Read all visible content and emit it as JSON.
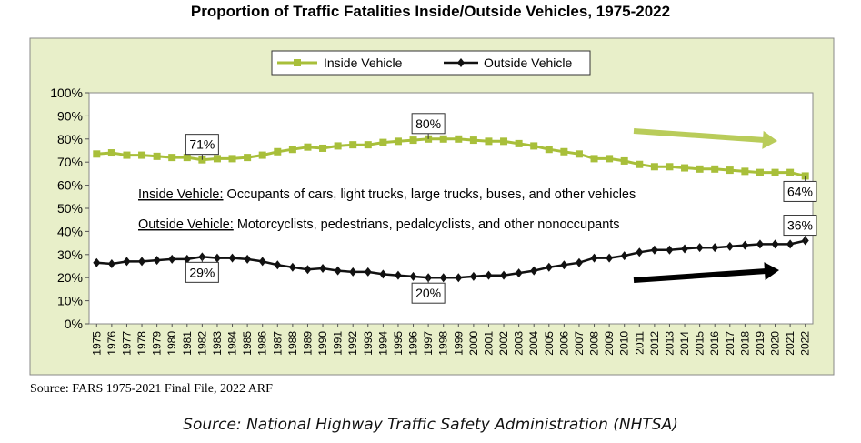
{
  "chart_data": {
    "type": "line",
    "title": "Proportion of Traffic Fatalities Inside/Outside Vehicles, 1975-2022",
    "x": [
      "1975",
      "1976",
      "1977",
      "1978",
      "1979",
      "1980",
      "1981",
      "1982",
      "1983",
      "1984",
      "1985",
      "1986",
      "1987",
      "1988",
      "1989",
      "1990",
      "1991",
      "1992",
      "1993",
      "1994",
      "1995",
      "1996",
      "1997",
      "1998",
      "1999",
      "2000",
      "2001",
      "2002",
      "2003",
      "2004",
      "2005",
      "2006",
      "2007",
      "2008",
      "2009",
      "2010",
      "2011",
      "2012",
      "2013",
      "2014",
      "2015",
      "2016",
      "2017",
      "2018",
      "2019",
      "2020",
      "2021",
      "2022"
    ],
    "series": [
      {
        "name": "Inside Vehicle",
        "color": "#a8bf3a",
        "marker": "square",
        "values": [
          73.5,
          74,
          73,
          73,
          72.5,
          72,
          72,
          71,
          71.5,
          71.5,
          72,
          73,
          74.5,
          75.5,
          76.5,
          76,
          77,
          77.5,
          77.5,
          78.5,
          79,
          79.5,
          80,
          80,
          80,
          79.5,
          79,
          79,
          78,
          77,
          75.5,
          74.5,
          73.5,
          71.5,
          71.5,
          70.5,
          69,
          68,
          68,
          67.5,
          67,
          67,
          66.5,
          66,
          65.5,
          65.5,
          65.5,
          64
        ]
      },
      {
        "name": "Outside Vehicle",
        "color": "#111111",
        "marker": "diamond",
        "values": [
          26.5,
          26,
          27,
          27,
          27.5,
          28,
          28,
          29,
          28.5,
          28.5,
          28,
          27,
          25.5,
          24.5,
          23.5,
          24,
          23,
          22.5,
          22.5,
          21.5,
          21,
          20.5,
          20,
          20,
          20,
          20.5,
          21,
          21,
          22,
          23,
          24.5,
          25.5,
          26.5,
          28.5,
          28.5,
          29.5,
          31,
          32,
          32,
          32.5,
          33,
          33,
          33.5,
          34,
          34.5,
          34.5,
          34.5,
          36
        ]
      }
    ],
    "ylim": [
      0,
      100
    ],
    "y_ticks": [
      "0%",
      "10%",
      "20%",
      "30%",
      "40%",
      "50%",
      "60%",
      "70%",
      "80%",
      "90%",
      "100%"
    ],
    "grid": false,
    "legend_position": "top-center",
    "background_color": "#e8efc9",
    "annotations": [
      {
        "series": 0,
        "x": "1982",
        "label": "71%",
        "position": "above"
      },
      {
        "series": 0,
        "x": "1997",
        "label": "80%",
        "position": "above"
      },
      {
        "series": 0,
        "x": "2022",
        "label": "64%",
        "position": "below"
      },
      {
        "series": 1,
        "x": "1982",
        "label": "29%",
        "position": "below"
      },
      {
        "series": 1,
        "x": "1997",
        "label": "20%",
        "position": "below"
      },
      {
        "series": 1,
        "x": "2022",
        "label": "36%",
        "position": "above"
      }
    ],
    "trend_arrows": [
      {
        "series": 0,
        "direction": "down",
        "color": "#b9cc5a"
      },
      {
        "series": 1,
        "direction": "up",
        "color": "#000000"
      }
    ],
    "notes": [
      {
        "label": "Inside Vehicle:",
        "text": " Occupants of cars, light trucks, large trucks, buses, and other vehicles"
      },
      {
        "label": "Outside Vehicle:",
        "text": " Motorcyclists, pedestrians, pedalcyclists, and other nonoccupants"
      }
    ]
  },
  "source_fars": "Source: FARS 1975-2021 Final File, 2022 ARF",
  "source_nhtsa": "Source: National Highway Traffic Safety Administration (NHTSA)"
}
